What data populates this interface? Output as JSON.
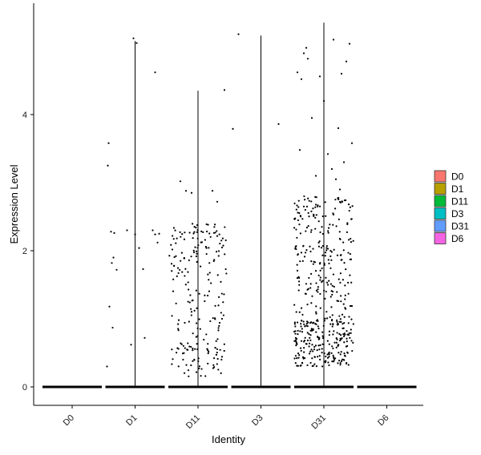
{
  "chart_data": {
    "type": "scatter",
    "subtype": "violin-jitter",
    "title": "",
    "xlabel": "Identity",
    "ylabel": "Expression Level",
    "ylim": [
      -0.3,
      5.6
    ],
    "yticks": [
      0,
      2,
      4
    ],
    "categories": [
      "D0",
      "D1",
      "D11",
      "D3",
      "D31",
      "D6"
    ],
    "colors": {
      "D0": "#F8766D",
      "D1": "#B79F00",
      "D11": "#00BA38",
      "D3": "#00BFC4",
      "D31": "#619CFF",
      "D6": "#F564E3"
    },
    "legend": {
      "position": "right",
      "items": [
        "D0",
        "D1",
        "D11",
        "D3",
        "D31",
        "D6"
      ]
    },
    "grid": false,
    "series": [
      {
        "name": "D0",
        "max": 0.0,
        "points": []
      },
      {
        "name": "D1",
        "max": 5.08,
        "points": [
          [
            -0.35,
            0.3
          ],
          [
            -0.32,
            1.18
          ],
          [
            -0.28,
            0.87
          ],
          [
            -0.33,
            3.58
          ],
          [
            -0.34,
            3.25
          ],
          [
            -0.3,
            2.28
          ],
          [
            -0.26,
            2.26
          ],
          [
            -0.29,
            1.82
          ],
          [
            -0.27,
            1.9
          ],
          [
            -0.23,
            1.72
          ],
          [
            -0.1,
            2.3
          ],
          [
            0.0,
            2.24
          ],
          [
            -0.05,
            0.62
          ],
          [
            0.05,
            2.04
          ],
          [
            0.1,
            1.73
          ],
          [
            0.12,
            0.72
          ],
          [
            0.22,
            2.3
          ],
          [
            0.25,
            2.24
          ],
          [
            0.3,
            2.25
          ],
          [
            0.28,
            2.12
          ],
          [
            0.25,
            4.62
          ],
          [
            -0.02,
            5.12
          ],
          [
            0.02,
            5.05
          ]
        ]
      },
      {
        "name": "D11",
        "max": 4.35
      },
      {
        "name": "D3",
        "max": 5.16,
        "points": [
          [
            -0.35,
            3.79
          ],
          [
            -0.28,
            5.18
          ],
          [
            0.22,
            3.86
          ]
        ]
      },
      {
        "name": "D31",
        "max": 5.35
      },
      {
        "name": "D6",
        "max": 0.0,
        "points": []
      }
    ]
  }
}
